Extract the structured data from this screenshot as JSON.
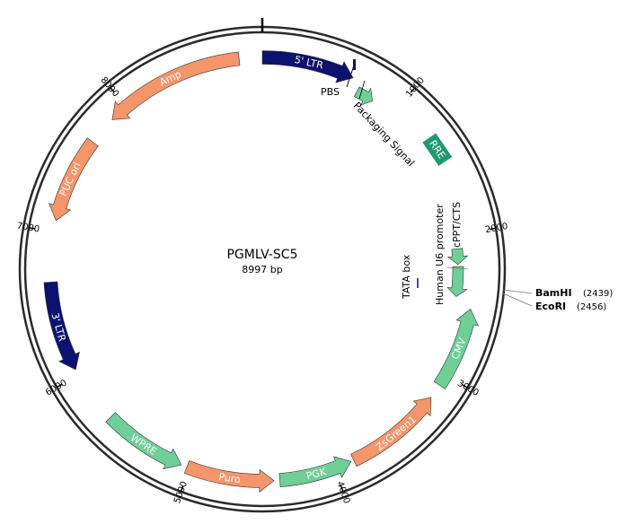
{
  "plasmid": {
    "name": "PGMLV-SC5",
    "size_label": "8997 bp",
    "length": 8997
  },
  "colors": {
    "navy": "#0d1270",
    "green": "#6fcf97",
    "salmon": "#f4956a",
    "rre": "#1e9a6e",
    "outline": "#2b2b2b"
  },
  "ticks": [
    {
      "pos": 1000,
      "label": "1000"
    },
    {
      "pos": 2000,
      "label": "2000"
    },
    {
      "pos": 3000,
      "label": "3000"
    },
    {
      "pos": 4000,
      "label": "4000"
    },
    {
      "pos": 5000,
      "label": "5000"
    },
    {
      "pos": 6000,
      "label": "6000"
    },
    {
      "pos": 7000,
      "label": "7000"
    },
    {
      "pos": 8000,
      "label": "8000"
    }
  ],
  "features": [
    {
      "name": "5' LTR",
      "start": 0,
      "end": 634,
      "dir": 1,
      "color": "navy",
      "label_color": "light"
    },
    {
      "name": "RRE",
      "start": 1280,
      "end": 1500,
      "dir": 0,
      "color": "rre",
      "label_color": "light",
      "box": true
    },
    {
      "name": "CMV",
      "start": 2520,
      "end": 3080,
      "dir": -1,
      "color": "green",
      "label_color": "light"
    },
    {
      "name": "ZsGreen1",
      "start": 3180,
      "end": 3860,
      "dir": -1,
      "color": "salmon",
      "label_color": "light"
    },
    {
      "name": "PGK",
      "start": 3880,
      "end": 4380,
      "dir": -1,
      "color": "green",
      "label_color": "light"
    },
    {
      "name": "Puro",
      "start": 4420,
      "end": 5020,
      "dir": -1,
      "color": "salmon",
      "label_color": "light"
    },
    {
      "name": "WPRE",
      "start": 5060,
      "end": 5640,
      "dir": -1,
      "color": "green",
      "label_color": "light"
    },
    {
      "name": "3' LTR",
      "start": 6040,
      "end": 6660,
      "dir": -1,
      "color": "navy",
      "label_color": "light"
    },
    {
      "name": "PUC ori",
      "start": 7080,
      "end": 7670,
      "dir": -1,
      "color": "salmon",
      "label_color": "light"
    },
    {
      "name": "Amp",
      "start": 7870,
      "end": 8840,
      "dir": -1,
      "color": "salmon",
      "label_color": "light"
    }
  ],
  "small_features": [
    {
      "name": "Packaging Signal",
      "start": 700,
      "end": 830,
      "dir": 1,
      "color": "green"
    },
    {
      "name": "cPPT/CTS",
      "start": 2100,
      "end": 2215,
      "dir": 1,
      "color": "green"
    },
    {
      "name": "Human U6 promoter",
      "start": 2230,
      "end": 2450,
      "dir": 1,
      "color": "green"
    }
  ],
  "annotations": {
    "pbs": "PBS",
    "packaging": "Packaging Signal",
    "cppt": "cPPT/CTS",
    "u6": "Human U6 promoter",
    "tata": "TATA box"
  },
  "sites": [
    {
      "name": "BamHI",
      "pos_label": "(2439)",
      "pos": 2439
    },
    {
      "name": "EcoRI",
      "pos_label": "(2456)",
      "pos": 2456
    }
  ]
}
